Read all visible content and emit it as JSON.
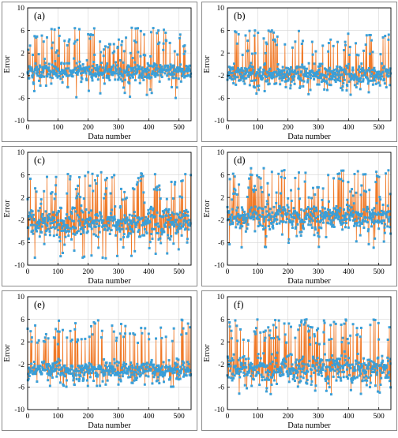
{
  "chart_data": [
    {
      "panel": "(a)",
      "type": "line",
      "xlabel": "Data number",
      "ylabel": "Error",
      "xlim": [
        0,
        540
      ],
      "ylim": [
        -10,
        10
      ],
      "xticks": [
        0,
        100,
        200,
        300,
        400,
        500
      ],
      "yticks": [
        -10,
        -6,
        -2,
        2,
        6,
        10
      ],
      "grid": true,
      "n": 540,
      "seed": 11,
      "base": -1.2,
      "spread": 1.5,
      "spike_prob": 0.14,
      "spike_max": 6.5,
      "dip_min": -6.0,
      "series_color": "#f07a28",
      "marker_color": "#3a9fd8"
    },
    {
      "panel": "(b)",
      "type": "line",
      "xlabel": "Data number",
      "ylabel": "Error",
      "xlim": [
        0,
        540
      ],
      "ylim": [
        -10,
        10
      ],
      "xticks": [
        0,
        100,
        200,
        300,
        400,
        500
      ],
      "yticks": [
        -10,
        -6,
        -2,
        2,
        6,
        10
      ],
      "grid": true,
      "n": 540,
      "seed": 23,
      "base": -1.8,
      "spread": 1.4,
      "spike_prob": 0.12,
      "spike_max": 6.0,
      "dip_min": -5.5,
      "series_color": "#f07a28",
      "marker_color": "#3a9fd8"
    },
    {
      "panel": "(c)",
      "type": "line",
      "xlabel": "Data number",
      "ylabel": "Error",
      "xlim": [
        0,
        540
      ],
      "ylim": [
        -10,
        10
      ],
      "xticks": [
        0,
        100,
        200,
        300,
        400,
        500
      ],
      "yticks": [
        -10,
        -6,
        -2,
        2,
        6,
        10
      ],
      "grid": true,
      "n": 540,
      "seed": 37,
      "base": -2.6,
      "spread": 2.2,
      "spike_prob": 0.16,
      "spike_max": 6.5,
      "dip_min": -9.0,
      "series_color": "#f07a28",
      "marker_color": "#3a9fd8"
    },
    {
      "panel": "(d)",
      "type": "line",
      "xlabel": "Data number",
      "ylabel": "Error",
      "xlim": [
        0,
        540
      ],
      "ylim": [
        -10,
        10
      ],
      "xticks": [
        0,
        100,
        200,
        300,
        400,
        500
      ],
      "yticks": [
        -10,
        -6,
        -2,
        2,
        6,
        10
      ],
      "grid": true,
      "n": 540,
      "seed": 41,
      "base": -1.5,
      "spread": 1.8,
      "spike_prob": 0.15,
      "spike_max": 7.2,
      "dip_min": -7.0,
      "series_color": "#f07a28",
      "marker_color": "#3a9fd8"
    },
    {
      "panel": "(e)",
      "type": "line",
      "xlabel": "Data number",
      "ylabel": "Error",
      "xlim": [
        0,
        540
      ],
      "ylim": [
        -10,
        10
      ],
      "xticks": [
        0,
        100,
        200,
        300,
        400,
        500
      ],
      "yticks": [
        -10,
        -6,
        -2,
        2,
        6,
        10
      ],
      "grid": true,
      "n": 540,
      "seed": 53,
      "base": -3.0,
      "spread": 1.3,
      "spike_prob": 0.14,
      "spike_max": 6.0,
      "dip_min": -6.0,
      "series_color": "#f07a28",
      "marker_color": "#3a9fd8"
    },
    {
      "panel": "(f)",
      "type": "line",
      "xlabel": "Data number",
      "ylabel": "Error",
      "xlim": [
        0,
        540
      ],
      "ylim": [
        -10,
        10
      ],
      "xticks": [
        0,
        100,
        200,
        300,
        400,
        500
      ],
      "yticks": [
        -10,
        -6,
        -2,
        2,
        6,
        10
      ],
      "grid": true,
      "n": 540,
      "seed": 67,
      "base": -2.8,
      "spread": 1.9,
      "spike_prob": 0.15,
      "spike_max": 6.0,
      "dip_min": -7.5,
      "series_color": "#f07a28",
      "marker_color": "#3a9fd8"
    }
  ]
}
